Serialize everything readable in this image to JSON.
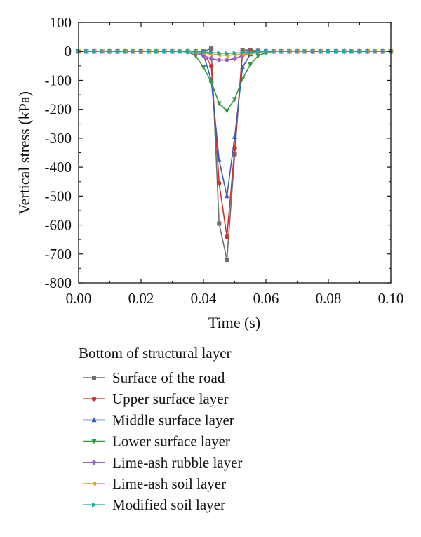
{
  "chart_data": {
    "type": "line",
    "xlabel": "Time (s)",
    "ylabel": "Vertical stress (kPa)",
    "xlim": [
      0.0,
      0.1
    ],
    "ylim": [
      -800,
      100
    ],
    "xticks": [
      0.0,
      0.02,
      0.04,
      0.06,
      0.08,
      0.1
    ],
    "xtick_labels": [
      "0.00",
      "0.02",
      "0.04",
      "0.06",
      "0.08",
      "0.10"
    ],
    "yticks": [
      -800,
      -700,
      -600,
      -500,
      -400,
      -300,
      -200,
      -100,
      0,
      100
    ],
    "ytick_labels": [
      "-800",
      "-700",
      "-600",
      "-500",
      "-400",
      "-300",
      "-200",
      "-100",
      "0",
      "100"
    ],
    "grid": false,
    "legend": {
      "title": "Bottom of structural layer",
      "placement": "below"
    },
    "series": [
      {
        "name": "Surface of the road",
        "color": "#6e6e6e",
        "marker": "square",
        "x": [
          0,
          0.0025,
          0.005,
          0.0075,
          0.01,
          0.0125,
          0.015,
          0.0175,
          0.02,
          0.0225,
          0.025,
          0.0275,
          0.03,
          0.0325,
          0.035,
          0.0375,
          0.04,
          0.0425,
          0.045,
          0.0475,
          0.05,
          0.0525,
          0.055,
          0.0575,
          0.06,
          0.0625,
          0.065,
          0.0675,
          0.07,
          0.0725,
          0.075,
          0.0775,
          0.08,
          0.0825,
          0.085,
          0.0875,
          0.09,
          0.0925,
          0.095,
          0.0975,
          0.1
        ],
        "y": [
          0,
          0,
          0,
          0,
          0,
          0,
          0,
          0,
          0,
          0,
          0,
          0,
          0,
          0,
          0,
          0,
          0,
          10,
          -595,
          -720,
          -355,
          5,
          5,
          2,
          0,
          0,
          0,
          0,
          0,
          0,
          0,
          0,
          0,
          0,
          0,
          0,
          0,
          0,
          0,
          0,
          0
        ]
      },
      {
        "name": "Upper surface layer",
        "color": "#d2322d",
        "marker": "circle",
        "x": [
          0.04,
          0.0425,
          0.045,
          0.0475,
          0.05,
          0.0525,
          0.055,
          0.0575,
          0.06
        ],
        "y": [
          -5,
          -50,
          -455,
          -640,
          -335,
          -5,
          0,
          0,
          0
        ]
      },
      {
        "name": "Middle surface layer",
        "color": "#3a5fb0",
        "marker": "triangle-up",
        "x": [
          0,
          0.0025,
          0.005,
          0.0075,
          0.01,
          0.0125,
          0.015,
          0.0175,
          0.02,
          0.0225,
          0.025,
          0.0275,
          0.03,
          0.0325,
          0.035,
          0.0375,
          0.04,
          0.0425,
          0.045,
          0.0475,
          0.05,
          0.0525,
          0.055,
          0.0575,
          0.06,
          0.0625,
          0.065,
          0.0675,
          0.07,
          0.0725,
          0.075,
          0.0775,
          0.08,
          0.0825,
          0.085,
          0.0875,
          0.09,
          0.0925,
          0.095,
          0.0975,
          0.1
        ],
        "y": [
          0,
          0,
          0,
          0,
          0,
          0,
          0,
          0,
          0,
          0,
          0,
          0,
          0,
          0,
          0,
          0,
          -10,
          -100,
          -375,
          -500,
          -295,
          -55,
          -10,
          0,
          0,
          0,
          0,
          0,
          0,
          0,
          0,
          0,
          0,
          0,
          0,
          0,
          0,
          0,
          0,
          0,
          0
        ]
      },
      {
        "name": "Lower surface layer",
        "color": "#2e9a47",
        "marker": "triangle-down",
        "x": [
          0,
          0.0025,
          0.005,
          0.0075,
          0.01,
          0.0125,
          0.015,
          0.0175,
          0.02,
          0.0225,
          0.025,
          0.0275,
          0.03,
          0.0325,
          0.035,
          0.0375,
          0.04,
          0.0425,
          0.045,
          0.0475,
          0.05,
          0.0525,
          0.055,
          0.0575,
          0.06,
          0.0625,
          0.065,
          0.0675,
          0.07,
          0.0725,
          0.075,
          0.0775,
          0.08,
          0.0825,
          0.085,
          0.0875,
          0.09,
          0.0925,
          0.095,
          0.0975,
          0.1
        ],
        "y": [
          0,
          0,
          0,
          0,
          0,
          0,
          0,
          0,
          0,
          0,
          0,
          0,
          0,
          0,
          -2,
          -15,
          -55,
          -105,
          -180,
          -205,
          -165,
          -95,
          -45,
          -15,
          -5,
          0,
          0,
          0,
          0,
          0,
          0,
          0,
          0,
          0,
          0,
          0,
          0,
          0,
          0,
          0,
          0
        ]
      },
      {
        "name": "Lime-ash rubble layer",
        "color": "#9a5cc6",
        "marker": "diamond",
        "x": [
          0,
          0.0025,
          0.005,
          0.0075,
          0.01,
          0.0125,
          0.015,
          0.0175,
          0.02,
          0.0225,
          0.025,
          0.0275,
          0.03,
          0.0325,
          0.035,
          0.0375,
          0.04,
          0.0425,
          0.045,
          0.0475,
          0.05,
          0.0525,
          0.055,
          0.0575,
          0.06,
          0.0625,
          0.065,
          0.0675,
          0.07,
          0.0725,
          0.075,
          0.0775,
          0.08,
          0.0825,
          0.085,
          0.0875,
          0.09,
          0.0925,
          0.095,
          0.0975,
          0.1
        ],
        "y": [
          0,
          0,
          0,
          0,
          0,
          0,
          0,
          0,
          0,
          0,
          0,
          0,
          0,
          0,
          0,
          -5,
          -15,
          -25,
          -30,
          -30,
          -25,
          -15,
          -8,
          -3,
          0,
          0,
          0,
          0,
          0,
          0,
          0,
          0,
          0,
          0,
          0,
          0,
          0,
          0,
          0,
          0,
          0
        ]
      },
      {
        "name": "Lime-ash soil layer",
        "color": "#e3a21a",
        "marker": "triangle-left",
        "x": [
          0,
          0.0025,
          0.005,
          0.0075,
          0.01,
          0.0125,
          0.015,
          0.0175,
          0.02,
          0.0225,
          0.025,
          0.0275,
          0.03,
          0.0325,
          0.035,
          0.0375,
          0.04,
          0.0425,
          0.045,
          0.0475,
          0.05,
          0.0525,
          0.055,
          0.0575,
          0.06,
          0.0625,
          0.065,
          0.0675,
          0.07,
          0.0725,
          0.075,
          0.0775,
          0.08,
          0.0825,
          0.085,
          0.0875,
          0.09,
          0.0925,
          0.095,
          0.0975,
          0.1
        ],
        "y": [
          0,
          0,
          0,
          0,
          0,
          0,
          0,
          0,
          0,
          0,
          0,
          0,
          0,
          0,
          0,
          -2,
          -5,
          -10,
          -12,
          -14,
          -12,
          -10,
          -6,
          -3,
          -1,
          0,
          0,
          0,
          0,
          0,
          0,
          0,
          0,
          0,
          0,
          0,
          0,
          0,
          0,
          0,
          0
        ]
      },
      {
        "name": "Modified soil layer",
        "color": "#21a7a0",
        "marker": "triangle-right",
        "x": [
          0,
          0.0025,
          0.005,
          0.0075,
          0.01,
          0.0125,
          0.015,
          0.0175,
          0.02,
          0.0225,
          0.025,
          0.0275,
          0.03,
          0.0325,
          0.035,
          0.0375,
          0.04,
          0.0425,
          0.045,
          0.0475,
          0.05,
          0.0525,
          0.055,
          0.0575,
          0.06,
          0.0625,
          0.065,
          0.0675,
          0.07,
          0.0725,
          0.075,
          0.0775,
          0.08,
          0.0825,
          0.085,
          0.0875,
          0.09,
          0.0925,
          0.095,
          0.0975,
          0.1
        ],
        "y": [
          0,
          0,
          0,
          0,
          0,
          0,
          0,
          0,
          0,
          0,
          0,
          0,
          0,
          0,
          0,
          0,
          -2,
          -4,
          -6,
          -7,
          -6,
          -4,
          -3,
          -1,
          0,
          0,
          0,
          0,
          0,
          0,
          0,
          0,
          0,
          0,
          0,
          0,
          0,
          0,
          0,
          0,
          0
        ]
      }
    ]
  }
}
